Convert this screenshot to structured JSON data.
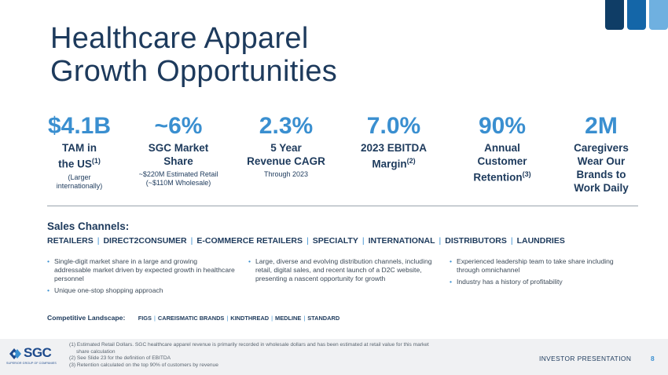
{
  "title_lines": [
    "Healthcare Apparel",
    "Growth Opportunities"
  ],
  "colors": {
    "accent": "#3a8fd0",
    "navy": "#1d3a5c",
    "bar_dark": "#0f3d66",
    "bar_mid": "#1466a8",
    "bar_light": "#6fb0e0"
  },
  "stats": [
    {
      "value": "$4.1B",
      "label_lines": [
        "TAM in",
        "the US"
      ],
      "label_sup": "(1)",
      "notes": [
        "(Larger",
        "internationally)"
      ]
    },
    {
      "value": "~6%",
      "label_lines": [
        "SGC Market",
        "Share"
      ],
      "label_sup": "",
      "notes": [
        "~$220M Estimated Retail",
        "(~$110M Wholesale)"
      ]
    },
    {
      "value": "2.3%",
      "label_lines": [
        "5 Year",
        "Revenue CAGR"
      ],
      "label_sup": "",
      "notes": [
        "Through 2023"
      ]
    },
    {
      "value": "7.0%",
      "label_lines": [
        "2023 EBITDA",
        "Margin"
      ],
      "label_sup": "(2)",
      "notes": []
    },
    {
      "value": "90%",
      "label_lines": [
        "Annual",
        "Customer",
        "Retention"
      ],
      "label_sup": "(3)",
      "notes": []
    },
    {
      "value": "2M",
      "label_lines": [
        "Caregivers",
        "Wear Our",
        "Brands to",
        "Work Daily"
      ],
      "label_sup": "",
      "notes": []
    }
  ],
  "sales_channels": {
    "title": "Sales Channels:",
    "items": [
      "RETAILERS",
      "DIRECT2CONSUMER",
      "E-COMMERCE RETAILERS",
      "SPECIALTY",
      "INTERNATIONAL",
      "DISTRIBUTORS",
      "LAUNDRIES"
    ],
    "separator": "|"
  },
  "bullet_columns": [
    [
      "Single-digit market share in a large and growing addressable market driven by expected growth in healthcare personnel",
      "Unique one-stop shopping approach"
    ],
    [
      "Large, diverse and evolving distribution channels, including retail, digital sales, and recent launch of a D2C website, presenting a nascent opportunity for growth"
    ],
    [
      "Experienced leadership team to take share including through omnichannel",
      "Industry has a history of profitability"
    ]
  ],
  "competitive": {
    "label": "Competitive Landscape:",
    "brands": [
      "FIGS",
      "CAREISMATIC BRANDS",
      "KINDTHREAD",
      "MEDLINE",
      "STANDARD"
    ]
  },
  "footer": {
    "logo_text": "SGC",
    "logo_sub": "SUPERIOR GROUP OF COMPANIES",
    "footnotes": [
      "(1) Estimated Retail Dollars. SGC healthcare apparel revenue is primarily recorded in wholesale dollars and has been estimated at retail value for this market",
      "share calculation",
      "(2) See Slide 23 for the definition of EBITDA",
      "(3) Retention calculated on the top 90% of customers by revenue"
    ],
    "investor_label": "INVESTOR PRESENTATION",
    "page_number": "8"
  }
}
